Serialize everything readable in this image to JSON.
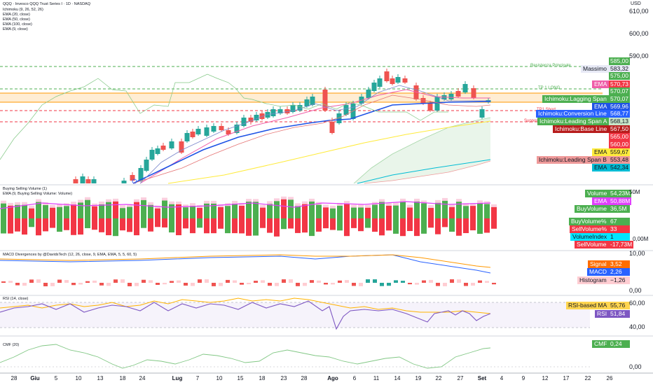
{
  "header": {
    "title": "QQQ · Invesco QQQ Trust Series I · 1D · NASDAQ",
    "indicators": [
      "Ichimoku (9, 26, 52, 26)",
      "EMA (20, close)",
      "EMA (50, close)",
      "EMA (100, close)",
      "EMA (9, close)"
    ]
  },
  "price_axis": {
    "top_label": "USD",
    "ticks": [
      "610,00",
      "600,00",
      "590,00"
    ]
  },
  "price_lines": {
    "resistenza": "Resistenza Principale",
    "tp1_long": "TP 1 LONG",
    "tp1_short": "TP1 Short",
    "supporto": "Supporto Principale"
  },
  "price_tags": [
    {
      "label": "",
      "value": "585,00",
      "bg": "#4caf50",
      "fg": "#ffffff",
      "y": 87
    },
    {
      "label": "Massimo",
      "value": "583,32",
      "bg": "#e8eaf6",
      "fg": "#131722",
      "y": 98
    },
    {
      "label": "",
      "value": "575,00",
      "bg": "#4caf50",
      "fg": "#ffffff",
      "y": 108
    },
    {
      "label": "EMA",
      "value": "570,73",
      "bg": "#f23645",
      "fg": "#ffffff",
      "y": 120,
      "labelbg": "#ef5da8"
    },
    {
      "label": "",
      "value": "570,07",
      "bg": "#4caf50",
      "fg": "#ffffff",
      "y": 130
    },
    {
      "label": "Ichimoku:Lagging Span",
      "value": "570,07",
      "bg": "#4caf50",
      "fg": "#ffffff",
      "y": 141
    },
    {
      "label": "EMA",
      "value": "569,96",
      "bg": "#1e53e5",
      "fg": "#ffffff",
      "y": 152
    },
    {
      "label": "Ichimoku:Conversion Line",
      "value": "568,77",
      "bg": "#2962ff",
      "fg": "#ffffff",
      "y": 162
    },
    {
      "label": "Ichimoku:Leading Span A",
      "value": "568,13",
      "bg": "#c8e6c9",
      "fg": "#131722",
      "y": 173,
      "labelbg": "#4caf50"
    },
    {
      "label": "Ichimoku:Base Line",
      "value": "567,50",
      "bg": "#b71c1c",
      "fg": "#ffffff",
      "y": 184
    },
    {
      "label": "",
      "value": "565,00",
      "bg": "#f23645",
      "fg": "#ffffff",
      "y": 195
    },
    {
      "label": "",
      "value": "560,00",
      "bg": "#f23645",
      "fg": "#ffffff",
      "y": 206
    },
    {
      "label": "EMA",
      "value": "559,67",
      "bg": "#ffeb3b",
      "fg": "#131722",
      "y": 217
    },
    {
      "label": "Ichimoku:Leading Span B",
      "value": "553,48",
      "bg": "#ef9a9a",
      "fg": "#131722",
      "y": 228
    },
    {
      "label": "EMA",
      "value": "542,34",
      "bg": "#00bcd4",
      "fg": "#131722",
      "y": 239
    }
  ],
  "volume_pane": {
    "labels": [
      "Buying Selling Volume (1)",
      "EMA (9, Buying Selling Volume: Volume)"
    ],
    "tags": [
      {
        "label": "Volume",
        "value": "54,23M",
        "bg": "#4caf50",
        "fg": "#ffffff",
        "y": 276
      },
      {
        "label": "EMA",
        "value": "50,88M",
        "bg": "#e040fb",
        "fg": "#ffffff",
        "y": 287
      },
      {
        "label": "BuyVolume",
        "value": "36,5M",
        "bg": "#4caf50",
        "fg": "#ffffff",
        "y": 298
      },
      {
        "label": "BuyVolume%",
        "value": "67",
        "bg": "#4caf50",
        "fg": "#ffffff",
        "y": 316
      },
      {
        "label": "SellVolume%",
        "value": "33",
        "bg": "#f23645",
        "fg": "#ffffff",
        "y": 327
      },
      {
        "label": "VolumeIndex",
        "value": "1",
        "bg": "#00e5ff",
        "fg": "#131722",
        "y": 338
      },
      {
        "label": "SellVolume",
        "value": "-17,73M",
        "bg": "#f23645",
        "fg": "#ffffff",
        "y": 349
      }
    ],
    "axis_ticks": [
      "50M",
      "0,00M"
    ]
  },
  "macd_pane": {
    "label": "MACD Divergences by @DavidsTech (12, 26, close, 9, EMA, EMA, 5, 5, 60, 5)",
    "tags": [
      {
        "label": "Signal",
        "value": "3,52",
        "bg": "#ff6d00",
        "fg": "#ffffff",
        "y": 377
      },
      {
        "label": "MACD",
        "value": "2,26",
        "bg": "#2962ff",
        "fg": "#ffffff",
        "y": 388
      },
      {
        "label": "Histogram",
        "value": "−1,26",
        "bg": "#ffcdd2",
        "fg": "#131722",
        "y": 400
      }
    ],
    "axis_ticks": [
      "10,00",
      "0,00"
    ]
  },
  "rsi_pane": {
    "label": "RSI (14, close)",
    "tags": [
      {
        "label": "RSI-based MA",
        "value": "55,76",
        "bg": "#ffd54f",
        "fg": "#131722",
        "y": 436
      },
      {
        "label": "RSI",
        "value": "51,84",
        "bg": "#7e57c2",
        "fg": "#ffffff",
        "y": 448
      }
    ],
    "axis_ticks": [
      "60,00",
      "40,00"
    ]
  },
  "cmf_pane": {
    "label": "CMF (20)",
    "tags": [
      {
        "label": "CMF",
        "value": "0,24",
        "bg": "#4caf50",
        "fg": "#ffffff",
        "y": 491
      }
    ],
    "axis_ticks": [
      "0,00"
    ]
  },
  "x_axis": [
    {
      "label": "28",
      "bold": false
    },
    {
      "label": "Giu",
      "bold": true
    },
    {
      "label": "5",
      "bold": false
    },
    {
      "label": "10",
      "bold": false
    },
    {
      "label": "13",
      "bold": false
    },
    {
      "label": "18",
      "bold": false
    },
    {
      "label": "24",
      "bold": false
    },
    {
      "label": "Lug",
      "bold": true
    },
    {
      "label": "7",
      "bold": false
    },
    {
      "label": "10",
      "bold": false
    },
    {
      "label": "15",
      "bold": false
    },
    {
      "label": "18",
      "bold": false
    },
    {
      "label": "23",
      "bold": false
    },
    {
      "label": "28",
      "bold": false
    },
    {
      "label": "Ago",
      "bold": true
    },
    {
      "label": "6",
      "bold": false
    },
    {
      "label": "11",
      "bold": false
    },
    {
      "label": "14",
      "bold": false
    },
    {
      "label": "19",
      "bold": false
    },
    {
      "label": "22",
      "bold": false
    },
    {
      "label": "27",
      "bold": false
    },
    {
      "label": "Set",
      "bold": true
    },
    {
      "label": "4",
      "bold": false
    },
    {
      "label": "9",
      "bold": false
    },
    {
      "label": "12",
      "bold": false
    },
    {
      "label": "17",
      "bold": false
    },
    {
      "label": "22",
      "bold": false
    },
    {
      "label": "26",
      "bold": false
    }
  ],
  "colors": {
    "up": "#26a69a",
    "down": "#ef5350",
    "bull": "#4caf50",
    "bear": "#f23645"
  }
}
